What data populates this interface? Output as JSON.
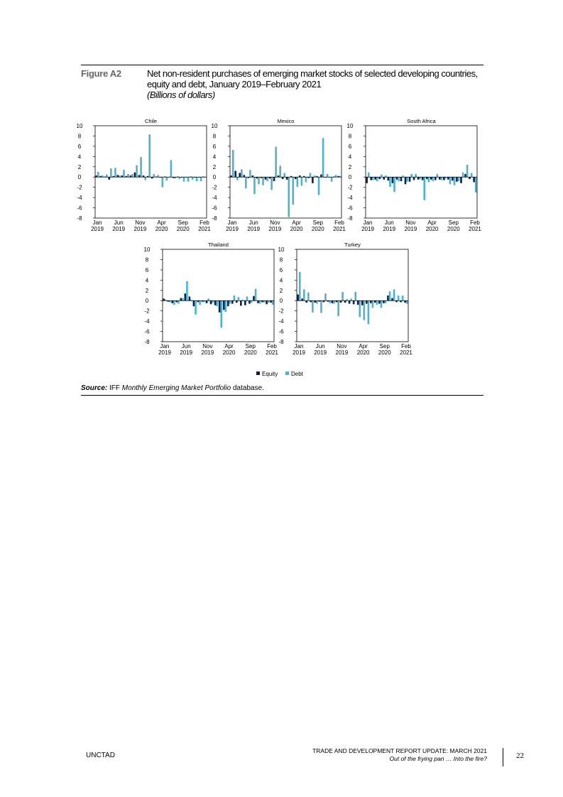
{
  "figure": {
    "label": "Figure A2",
    "title": "Net non-resident purchases of emerging market stocks of selected developing countries, equity and debt, January 2019–February 2021",
    "units": "(Billions of dollars)"
  },
  "source": {
    "label": "Source:",
    "org": "IFF",
    "database_italic": "Monthly Emerging Market Portfolio",
    "suffix": "database."
  },
  "footer": {
    "org": "UNCTAD",
    "report": "TRADE AND DEVELOPMENT REPORT UPDATE: MARCH 2021",
    "subtitle": "Out of the frying pan … Into the fire?",
    "page": "22"
  },
  "colors": {
    "equity": "#0c1f4a",
    "debt": "#4bb3d1"
  },
  "chart_data": [
    {
      "type": "bar",
      "title": "Chile",
      "months": [
        "Jan 2019",
        "Feb 2019",
        "Mar 2019",
        "Apr 2019",
        "May 2019",
        "Jun 2019",
        "Jul 2019",
        "Aug 2019",
        "Sep 2019",
        "Oct 2019",
        "Nov 2019",
        "Dec 2019",
        "Jan 2020",
        "Feb 2020",
        "Mar 2020",
        "Apr 2020",
        "May 2020",
        "Jun 2020",
        "Jul 2020",
        "Aug 2020",
        "Sep 2020",
        "Oct 2020",
        "Nov 2020",
        "Dec 2020",
        "Jan 2021",
        "Feb 2021"
      ],
      "tick_labels": [
        [
          "Jan",
          "2019"
        ],
        [
          "Jun",
          "2019"
        ],
        [
          "Nov",
          "2019"
        ],
        [
          "Apr",
          "2020"
        ],
        [
          "Sep",
          "2020"
        ],
        [
          "Feb",
          "2021"
        ]
      ],
      "ylim": [
        -8,
        10
      ],
      "yticks": [
        -8,
        -6,
        -4,
        -2,
        0,
        2,
        4,
        6,
        8,
        10
      ],
      "series": [
        {
          "name": "Equity",
          "values": [
            0.3,
            0.2,
            0.1,
            -0.5,
            0.2,
            0.4,
            0.3,
            0.2,
            0.3,
            0.9,
            0.4,
            0.3,
            0.2,
            -0.3,
            0.1,
            -0.1,
            0.1,
            0.0,
            -0.2,
            0.1,
            -0.1,
            0.0,
            0.1,
            -0.1,
            0.0,
            0.1
          ]
        },
        {
          "name": "Debt",
          "values": [
            1.0,
            0.3,
            0.5,
            1.7,
            1.8,
            0.3,
            1.4,
            0.6,
            0.6,
            2.3,
            3.9,
            -0.6,
            8.3,
            0.6,
            0.4,
            -2.0,
            -0.7,
            3.3,
            -0.3,
            -0.4,
            -0.9,
            -0.9,
            -0.5,
            -0.8,
            -0.8,
            -0.1
          ]
        }
      ]
    },
    {
      "type": "bar",
      "title": "Mexico",
      "months": [
        "Jan 2019",
        "Feb 2019",
        "Mar 2019",
        "Apr 2019",
        "May 2019",
        "Jun 2019",
        "Jul 2019",
        "Aug 2019",
        "Sep 2019",
        "Oct 2019",
        "Nov 2019",
        "Dec 2019",
        "Jan 2020",
        "Feb 2020",
        "Mar 2020",
        "Apr 2020",
        "May 2020",
        "Jun 2020",
        "Jul 2020",
        "Aug 2020",
        "Sep 2020",
        "Oct 2020",
        "Nov 2020",
        "Dec 2020",
        "Jan 2021",
        "Feb 2021"
      ],
      "tick_labels": [
        [
          "Jan",
          "2019"
        ],
        [
          "Jun",
          "2019"
        ],
        [
          "Nov",
          "2019"
        ],
        [
          "Apr",
          "2020"
        ],
        [
          "Sep",
          "2020"
        ],
        [
          "Feb",
          "2021"
        ]
      ],
      "ylim": [
        -8,
        10
      ],
      "yticks": [
        -8,
        -6,
        -4,
        -2,
        0,
        2,
        4,
        6,
        8,
        10
      ],
      "series": [
        {
          "name": "Equity",
          "values": [
            0.3,
            1.2,
            0.8,
            0.4,
            -0.2,
            0.3,
            -0.3,
            -0.2,
            -0.5,
            -0.3,
            -0.8,
            0.3,
            -0.4,
            -0.5,
            0.2,
            -0.4,
            0.3,
            0.2,
            -0.2,
            -1.2,
            0.2,
            0.5,
            -0.1,
            0.0,
            0.1,
            0.2
          ]
        },
        {
          "name": "Debt",
          "values": [
            5.3,
            -0.6,
            1.5,
            -2.2,
            1.4,
            -3.3,
            -1.4,
            -1.6,
            -0.8,
            -2.5,
            5.9,
            2.2,
            0.8,
            -7.8,
            -5.4,
            -1.9,
            -1.7,
            -1.0,
            0.8,
            0.3,
            -3.5,
            7.6,
            0.6,
            -0.9,
            0.4,
            0.2
          ]
        }
      ]
    },
    {
      "type": "bar",
      "title": "South Africa",
      "months": [
        "Jan 2019",
        "Feb 2019",
        "Mar 2019",
        "Apr 2019",
        "May 2019",
        "Jun 2019",
        "Jul 2019",
        "Aug 2019",
        "Sep 2019",
        "Oct 2019",
        "Nov 2019",
        "Dec 2019",
        "Jan 2020",
        "Feb 2020",
        "Mar 2020",
        "Apr 2020",
        "May 2020",
        "Jun 2020",
        "Jul 2020",
        "Aug 2020",
        "Sep 2020",
        "Oct 2020",
        "Nov 2020",
        "Dec 2020",
        "Jan 2021",
        "Feb 2021"
      ],
      "tick_labels": [
        [
          "Jan",
          "2019"
        ],
        [
          "Jun",
          "2019"
        ],
        [
          "Nov",
          "2019"
        ],
        [
          "Apr",
          "2020"
        ],
        [
          "Sep",
          "2020"
        ],
        [
          "Feb",
          "2021"
        ]
      ],
      "ylim": [
        -8,
        10
      ],
      "yticks": [
        -8,
        -6,
        -4,
        -2,
        0,
        2,
        4,
        6,
        8,
        10
      ],
      "series": [
        {
          "name": "Equity",
          "values": [
            -1.2,
            -0.6,
            -0.5,
            -0.4,
            -0.5,
            -0.7,
            -1.2,
            -0.5,
            -0.8,
            -1.4,
            -0.9,
            -0.6,
            -0.5,
            -0.6,
            -0.4,
            -0.5,
            -0.6,
            -0.5,
            -0.6,
            -0.5,
            -0.7,
            -0.9,
            -1.2,
            0.6,
            -0.4,
            -1.0
          ]
        },
        {
          "name": "Debt",
          "values": [
            0.9,
            -0.6,
            -0.8,
            0.5,
            0.3,
            -1.9,
            -2.9,
            -0.8,
            0.3,
            -0.9,
            0.6,
            0.6,
            -0.4,
            -4.5,
            -1.0,
            -0.8,
            0.6,
            -0.6,
            -0.3,
            -1.4,
            -1.6,
            -0.8,
            0.9,
            2.4,
            0.8,
            -3.0
          ]
        }
      ]
    },
    {
      "type": "bar",
      "title": "Thailand",
      "months": [
        "Jan 2019",
        "Feb 2019",
        "Mar 2019",
        "Apr 2019",
        "May 2019",
        "Jun 2019",
        "Jul 2019",
        "Aug 2019",
        "Sep 2019",
        "Oct 2019",
        "Nov 2019",
        "Dec 2019",
        "Jan 2020",
        "Feb 2020",
        "Mar 2020",
        "Apr 2020",
        "May 2020",
        "Jun 2020",
        "Jul 2020",
        "Aug 2020",
        "Sep 2020",
        "Oct 2020",
        "Nov 2020",
        "Dec 2020",
        "Jan 2021",
        "Feb 2021"
      ],
      "tick_labels": [
        [
          "Jan",
          "2019"
        ],
        [
          "Jun",
          "2019"
        ],
        [
          "Nov",
          "2019"
        ],
        [
          "Apr",
          "2020"
        ],
        [
          "Sep",
          "2020"
        ],
        [
          "Feb",
          "2021"
        ]
      ],
      "ylim": [
        -8,
        10
      ],
      "yticks": [
        -8,
        -6,
        -4,
        -2,
        0,
        2,
        4,
        6,
        8,
        10
      ],
      "series": [
        {
          "name": "Equity",
          "values": [
            0.4,
            -0.2,
            -0.5,
            -0.3,
            0.5,
            1.4,
            0.8,
            -1.1,
            -0.3,
            -0.2,
            -0.5,
            -0.7,
            -0.9,
            -2.3,
            -1.8,
            -1.1,
            -0.6,
            -0.4,
            -1.0,
            -0.9,
            -0.6,
            0.9,
            -0.5,
            -0.3,
            -0.7,
            -0.4
          ]
        },
        {
          "name": "Debt",
          "values": [
            0.2,
            -0.3,
            -0.8,
            -0.6,
            0.5,
            3.8,
            0.2,
            -2.7,
            -0.8,
            -0.3,
            0.4,
            -0.4,
            -1.1,
            -5.3,
            -2.2,
            -0.6,
            1.0,
            0.7,
            0.2,
            0.8,
            -0.4,
            2.3,
            -0.6,
            -0.4,
            -0.4,
            -0.8
          ]
        }
      ]
    },
    {
      "type": "bar",
      "title": "Turkey",
      "months": [
        "Jan 2019",
        "Feb 2019",
        "Mar 2019",
        "Apr 2019",
        "May 2019",
        "Jun 2019",
        "Jul 2019",
        "Aug 2019",
        "Sep 2019",
        "Oct 2019",
        "Nov 2019",
        "Dec 2019",
        "Jan 2020",
        "Feb 2020",
        "Mar 2020",
        "Apr 2020",
        "May 2020",
        "Jun 2020",
        "Jul 2020",
        "Aug 2020",
        "Sep 2020",
        "Oct 2020",
        "Nov 2020",
        "Dec 2020",
        "Jan 2021",
        "Feb 2021"
      ],
      "tick_labels": [
        [
          "Jan",
          "2019"
        ],
        [
          "Jun",
          "2019"
        ],
        [
          "Nov",
          "2019"
        ],
        [
          "Apr",
          "2020"
        ],
        [
          "Sep",
          "2020"
        ],
        [
          "Feb",
          "2021"
        ]
      ],
      "ylim": [
        -8,
        10
      ],
      "yticks": [
        -8,
        -6,
        -4,
        -2,
        0,
        2,
        4,
        6,
        8,
        10
      ],
      "series": [
        {
          "name": "Equity",
          "values": [
            1.2,
            0.4,
            -0.4,
            -0.3,
            -0.4,
            -0.2,
            -0.3,
            -0.2,
            -0.5,
            -0.3,
            -0.4,
            -0.4,
            -0.6,
            -0.7,
            -0.8,
            -0.9,
            -0.6,
            -0.5,
            -0.4,
            -0.6,
            -0.5,
            1.0,
            0.5,
            -0.3,
            -0.3,
            -0.4
          ]
        },
        {
          "name": "Debt",
          "values": [
            5.6,
            2.2,
            1.6,
            -2.3,
            -0.6,
            -2.4,
            1.4,
            -0.5,
            -0.6,
            -3.0,
            1.7,
            0.3,
            0.4,
            1.7,
            -3.2,
            -3.8,
            -4.6,
            -1.4,
            -0.8,
            -1.4,
            -0.5,
            1.8,
            2.2,
            1.0,
            1.0,
            -0.6
          ]
        }
      ]
    }
  ]
}
